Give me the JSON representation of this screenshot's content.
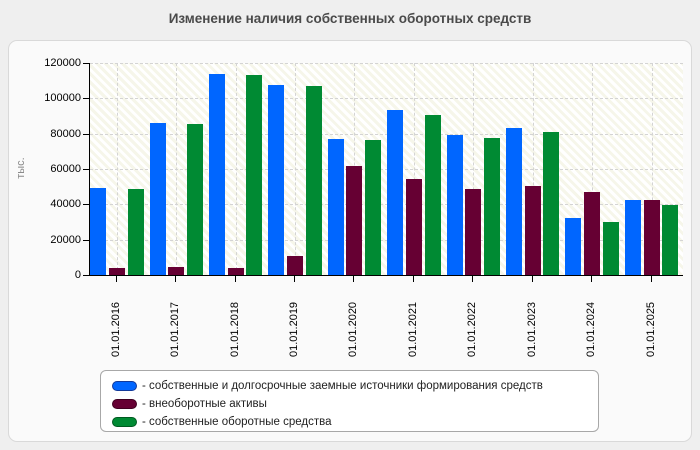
{
  "title": "Изменение наличия собственных оборотных средств",
  "colors": {
    "page_background": "#efefef",
    "card_background": "#fafafa",
    "card_border": "#d9d9d9",
    "gridline": "#d4d4d4",
    "axis": "#000000",
    "title_text": "#4a4a4a",
    "y_axis_title_text": "#8a8a8a"
  },
  "chart_data": {
    "type": "bar",
    "title": "Изменение наличия собственных оборотных средств",
    "xlabel": "",
    "ylabel": "тыс.",
    "ylim": [
      0,
      120000
    ],
    "ytick_step": 20000,
    "ytick_labels": [
      "0",
      "20000",
      "40000",
      "60000",
      "80000",
      "100000",
      "120000"
    ],
    "grid": true,
    "legend_position": "bottom",
    "categories": [
      "01.01.2016",
      "01.01.2017",
      "01.01.2018",
      "01.01.2019",
      "01.01.2020",
      "01.01.2021",
      "01.01.2022",
      "01.01.2023",
      "01.01.2024",
      "01.01.2025"
    ],
    "series": [
      {
        "name": "- собственные и долгосрочные заемные источники формирования средств",
        "color": "#0066ff",
        "border_color": "#123a9b",
        "values": [
          49200,
          85800,
          113500,
          107400,
          76700,
          93500,
          79500,
          83000,
          32000,
          42400
        ]
      },
      {
        "name": "- внеоборотные активы",
        "color": "#660033",
        "border_color": "#400020",
        "values": [
          3700,
          4800,
          4100,
          10800,
          61500,
          54600,
          48600,
          50300,
          46800,
          42400
        ]
      },
      {
        "name": "- собственные оборотные средства",
        "color": "#008a33",
        "border_color": "#005a20",
        "values": [
          48700,
          85500,
          113300,
          107000,
          76300,
          90300,
          77300,
          81000,
          30000,
          39800
        ]
      }
    ]
  }
}
